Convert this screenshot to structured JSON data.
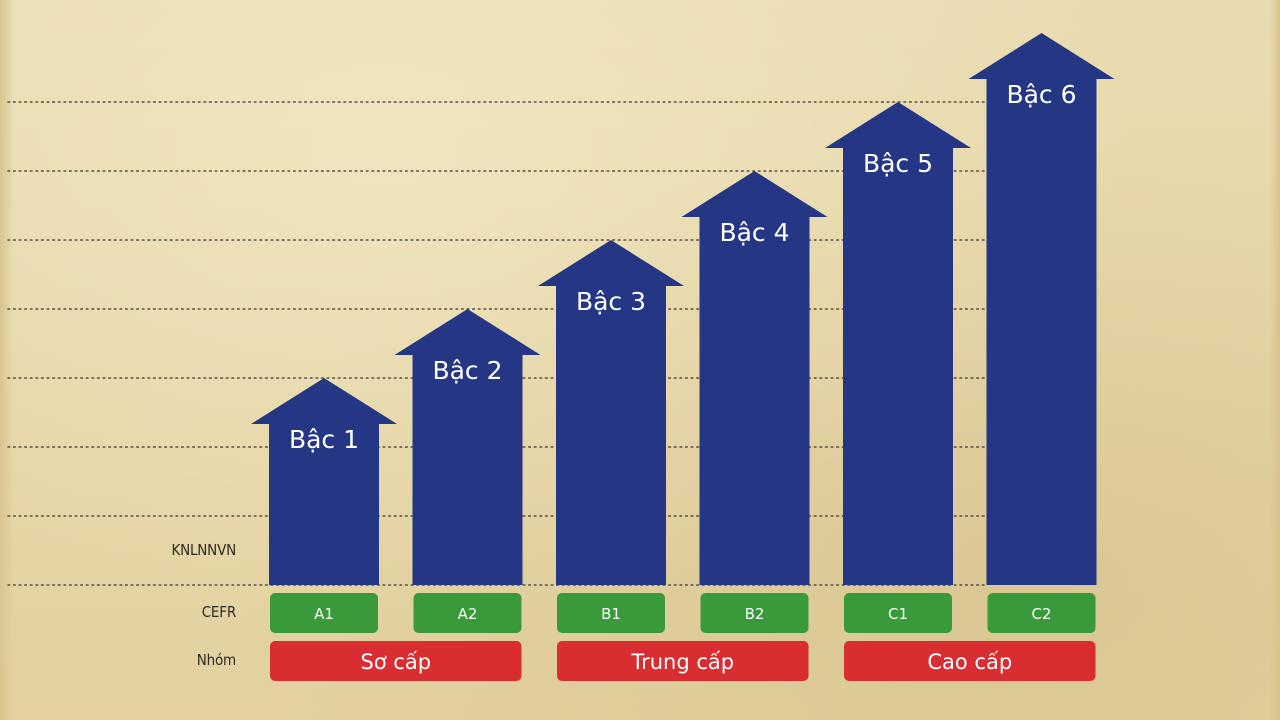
{
  "chart_data": {
    "type": "bar",
    "categories": [
      "Bậc 1",
      "Bậc 2",
      "Bậc 3",
      "Bậc 4",
      "Bậc 5",
      "Bậc 6"
    ],
    "values": [
      1,
      2,
      3,
      4,
      5,
      6
    ],
    "ylim": [
      0,
      7
    ],
    "grid": true,
    "row_labels": {
      "knlnnvn": "KNLNNVN",
      "cefr": "CEFR",
      "group": "Nhóm"
    },
    "cefr": [
      "A1",
      "A2",
      "B1",
      "B2",
      "C1",
      "C2"
    ],
    "groups": [
      {
        "label": "Sơ cấp",
        "levels": [
          1,
          2
        ]
      },
      {
        "label": "Trung cấp",
        "levels": [
          3,
          4
        ]
      },
      {
        "label": "Cao cấp",
        "levels": [
          5,
          6
        ]
      }
    ],
    "colors": {
      "arrow": "#253784",
      "cefr_box": "#3a9a3a",
      "group_box": "#d92e31",
      "grid": "#3a3630"
    }
  }
}
